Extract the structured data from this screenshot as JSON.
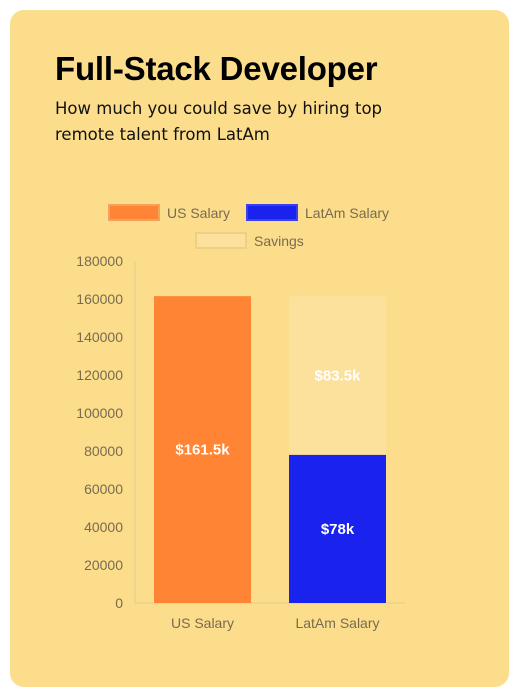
{
  "card": {
    "title": "Full-Stack Developer",
    "subtitle": "How much you could save by hiring top remote talent from LatAm"
  },
  "colors": {
    "background": "#fbdd8c",
    "us_salary": "#ff8433",
    "latam_salary": "#1a22ee",
    "savings": "#fbe19c",
    "savings_border": "#f0cf85",
    "axis_text": "#7a6b4f"
  },
  "chart_data": {
    "type": "bar",
    "stacked": true,
    "categories": [
      "US Salary",
      "LatAm Salary"
    ],
    "series": [
      {
        "name": "US Salary",
        "values": [
          161500,
          0
        ],
        "labels": [
          "$161.5k",
          ""
        ]
      },
      {
        "name": "LatAm Salary",
        "values": [
          0,
          78000
        ],
        "labels": [
          "",
          "$78k"
        ]
      },
      {
        "name": "Savings",
        "values": [
          0,
          83500
        ],
        "labels": [
          "",
          "$83.5k"
        ]
      }
    ],
    "ylim": [
      0,
      180000
    ],
    "yticks": [
      "0",
      "20000",
      "40000",
      "60000",
      "80000",
      "100000",
      "120000",
      "140000",
      "160000",
      "180000"
    ],
    "grid": false,
    "legend_position": "top"
  }
}
